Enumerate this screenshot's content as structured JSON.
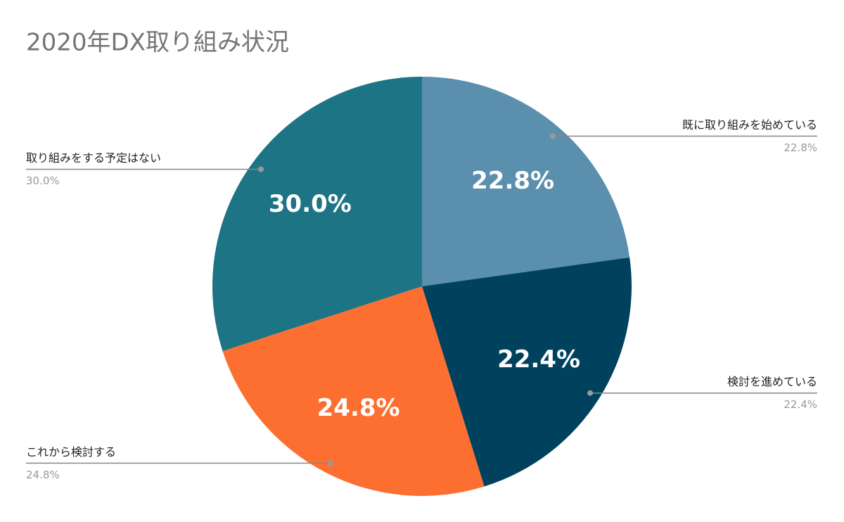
{
  "chart_data": {
    "type": "pie",
    "title": "2020年DX取り組み状況",
    "categories": [
      "既に取り組みを始めている",
      "検討を進めている",
      "これから検討する",
      "取り組みをする予定はない"
    ],
    "values": [
      22.8,
      22.4,
      24.8,
      30.0
    ],
    "value_labels": [
      "22.8%",
      "22.4%",
      "24.8%",
      "30.0%"
    ],
    "colors": [
      "#5a8fad",
      "#00425e",
      "#fd6f31",
      "#1d7484"
    ]
  }
}
